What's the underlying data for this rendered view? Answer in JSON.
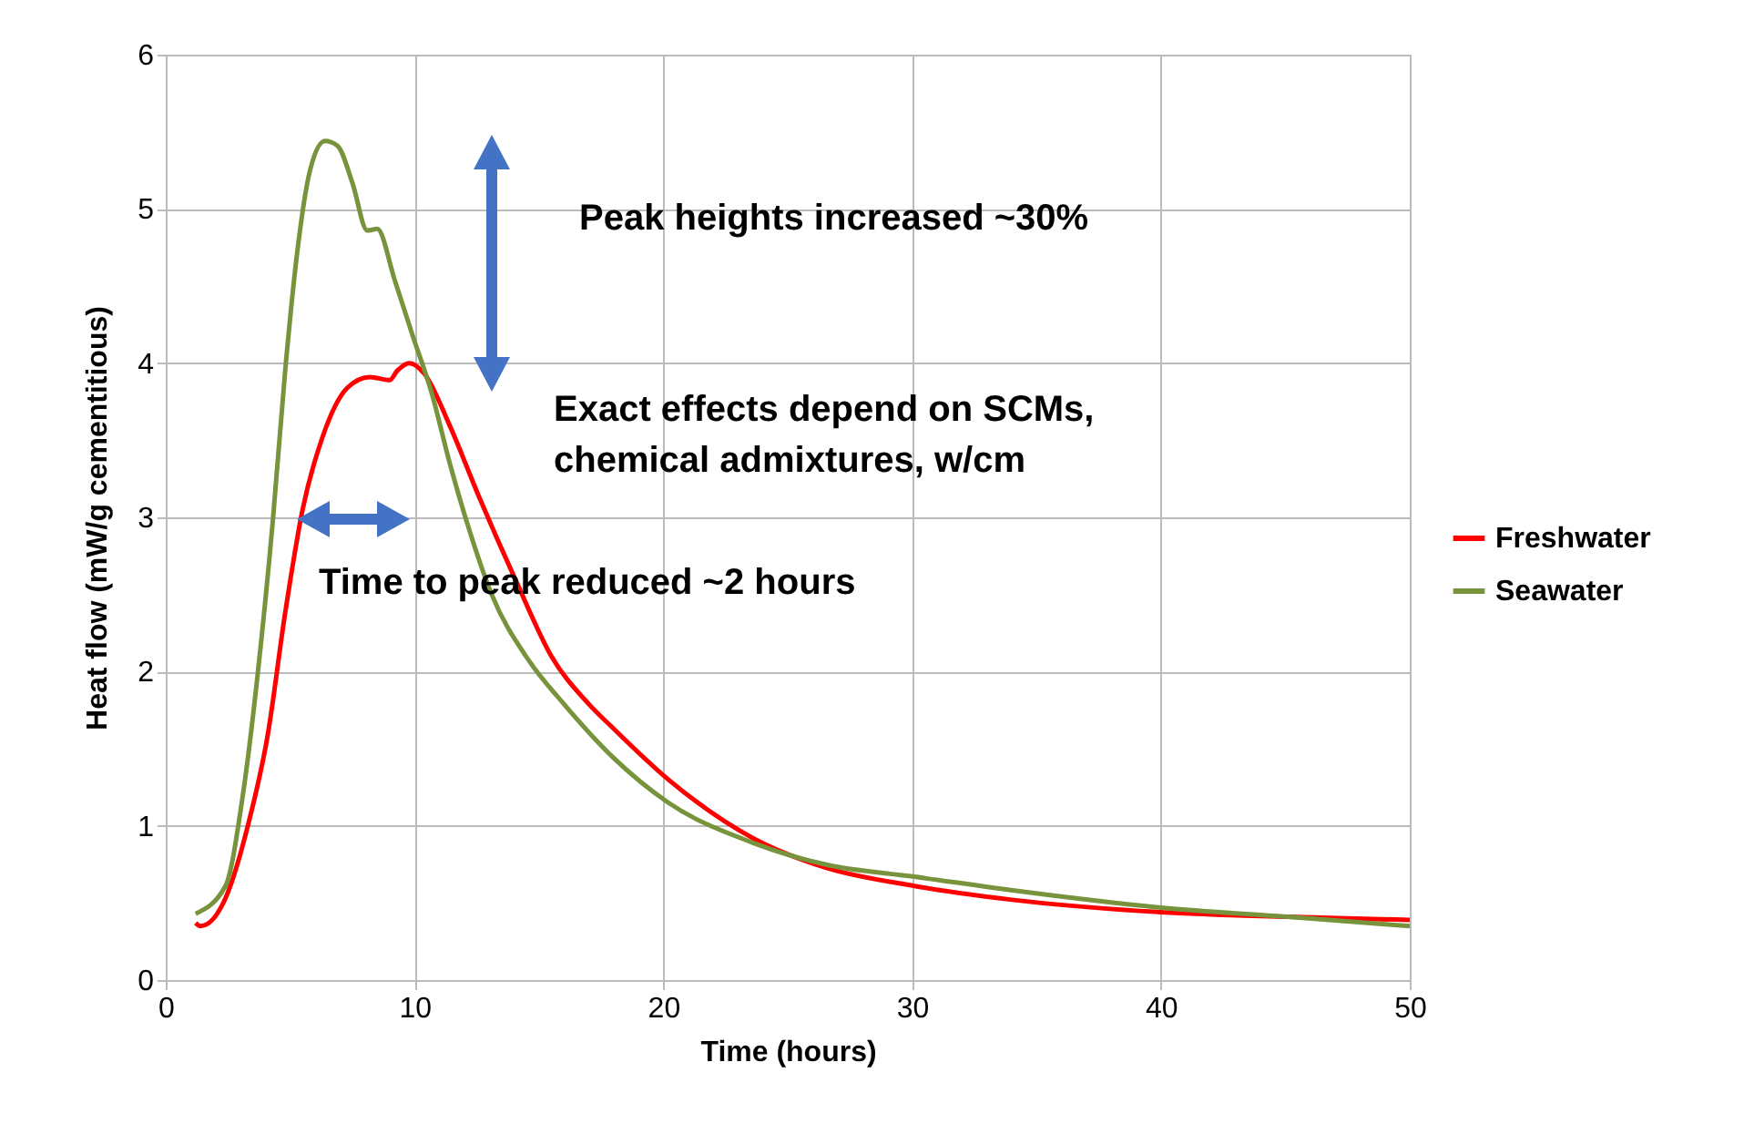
{
  "chart_data": {
    "type": "line",
    "xlabel": "Time (hours)",
    "ylabel": "Heat flow (mW/g cementitious)",
    "xlim": [
      0,
      50
    ],
    "xticks": [
      0,
      10,
      20,
      30,
      40,
      50
    ],
    "ylim": [
      0,
      6
    ],
    "yticks": [
      0,
      1,
      2,
      3,
      4,
      5,
      6
    ],
    "grid": true,
    "legend": "right",
    "marker": "none",
    "line_style": "solid",
    "annotations": [
      "Peak heights increased ~30%",
      "Exact effects depend on SCMs, chemical admixtures, w/cm",
      "Time to peak reduced ~2 hours"
    ],
    "series": [
      {
        "name": "Freshwater",
        "color": "#ff0000",
        "x": [
          1.2,
          1.4,
          2.4,
          3.3,
          4.1,
          4.8,
          5.5,
          6.3,
          7.3,
          8.2,
          9.0,
          9.3,
          9.8,
          10.4,
          11.4,
          12.6,
          14.1,
          15.5,
          17.0,
          18.0,
          20.2,
          23.6,
          26.5,
          30.1,
          34.6,
          40.0,
          45.1,
          50
        ],
        "values": [
          0.37,
          0.35,
          0.53,
          1.0,
          1.59,
          2.38,
          3.05,
          3.52,
          3.84,
          3.91,
          3.89,
          3.95,
          4.0,
          3.93,
          3.6,
          3.13,
          2.58,
          2.1,
          1.79,
          1.63,
          1.3,
          0.92,
          0.73,
          0.61,
          0.51,
          0.44,
          0.41,
          0.39
        ]
      },
      {
        "name": "Seawater",
        "color": "#77933c",
        "x": [
          1.2,
          2.4,
          3.1,
          3.7,
          4.3,
          4.8,
          5.3,
          5.8,
          6.4,
          6.9,
          7.5,
          8.1,
          8.5,
          9.2,
          9.9,
          10.7,
          11.4,
          12.1,
          13.1,
          14.6,
          16.0,
          18.0,
          20.2,
          23.6,
          26.5,
          30.1,
          34.6,
          40.0,
          45.1,
          50
        ],
        "values": [
          0.43,
          0.61,
          1.2,
          1.99,
          2.97,
          3.95,
          4.74,
          5.25,
          5.44,
          5.41,
          5.17,
          4.86,
          4.87,
          4.54,
          4.19,
          3.8,
          3.36,
          2.97,
          2.5,
          2.07,
          1.79,
          1.44,
          1.15,
          0.89,
          0.75,
          0.67,
          0.57,
          0.47,
          0.41,
          0.35
        ]
      }
    ]
  }
}
